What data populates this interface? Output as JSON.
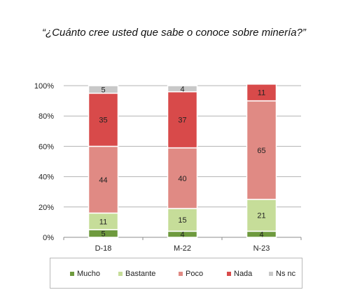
{
  "title": "“¿Cuánto cree usted que sabe o conoce sobre minería?”",
  "chart_data": {
    "type": "bar",
    "stacked": true,
    "categories": [
      "D-18",
      "M-22",
      "N-23"
    ],
    "series": [
      {
        "name": "Mucho",
        "values": [
          5,
          4,
          4
        ],
        "color": "#6e9a3e"
      },
      {
        "name": "Bastante",
        "values": [
          11,
          15,
          21
        ],
        "color": "#c6dd99"
      },
      {
        "name": "Poco",
        "values": [
          44,
          40,
          65
        ],
        "color": "#e08a84"
      },
      {
        "name": "Nada",
        "values": [
          35,
          37,
          11
        ],
        "color": "#d84a4a"
      },
      {
        "name": "Ns nc",
        "values": [
          5,
          4,
          0
        ],
        "color": "#c8c8c8"
      }
    ],
    "yticks": [
      "0%",
      "20%",
      "40%",
      "60%",
      "80%",
      "100%"
    ],
    "ylim": [
      0,
      100
    ],
    "grid": true,
    "legend_position": "bottom"
  }
}
